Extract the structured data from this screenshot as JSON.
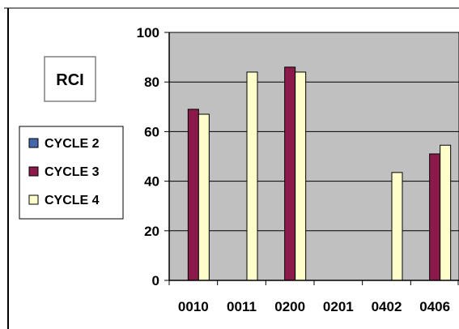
{
  "chart_data": {
    "type": "bar",
    "title": "RCI",
    "categories": [
      "0010",
      "0011",
      "0200",
      "0201",
      "0402",
      "0406"
    ],
    "series": [
      {
        "name": "CYCLE 2",
        "color": "#4466AA",
        "values": [
          null,
          null,
          null,
          null,
          null,
          null
        ]
      },
      {
        "name": "CYCLE 3",
        "color": "#8B1A4A",
        "values": [
          69,
          null,
          86,
          null,
          null,
          51
        ]
      },
      {
        "name": "CYCLE 4",
        "color": "#FFFFCC",
        "values": [
          67,
          84,
          84,
          null,
          43.5,
          54.5
        ]
      }
    ],
    "y_ticks": [
      "0",
      "20",
      "40",
      "60",
      "80",
      "100"
    ],
    "ylim": [
      0,
      100
    ],
    "grid": true,
    "legend_position": "left"
  }
}
